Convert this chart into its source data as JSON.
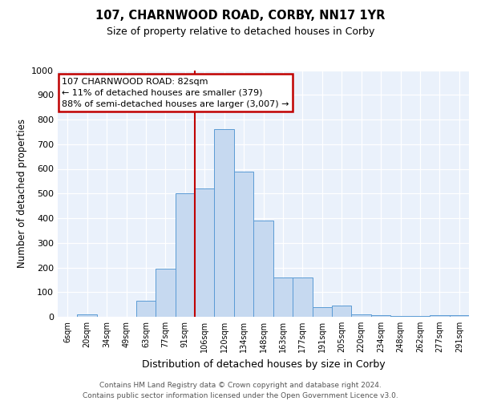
{
  "title1": "107, CHARNWOOD ROAD, CORBY, NN17 1YR",
  "title2": "Size of property relative to detached houses in Corby",
  "xlabel": "Distribution of detached houses by size in Corby",
  "ylabel": "Number of detached properties",
  "categories": [
    "6sqm",
    "20sqm",
    "34sqm",
    "49sqm",
    "63sqm",
    "77sqm",
    "91sqm",
    "106sqm",
    "120sqm",
    "134sqm",
    "148sqm",
    "163sqm",
    "177sqm",
    "191sqm",
    "205sqm",
    "220sqm",
    "234sqm",
    "248sqm",
    "262sqm",
    "277sqm",
    "291sqm"
  ],
  "values": [
    0,
    10,
    0,
    0,
    65,
    195,
    500,
    520,
    760,
    590,
    390,
    160,
    160,
    40,
    45,
    10,
    5,
    2,
    2,
    5,
    5
  ],
  "bar_color": "#c6d9f0",
  "bar_edge_color": "#5b9bd5",
  "vline_x": 6.5,
  "vline_color": "#c00000",
  "annotation_text": "107 CHARNWOOD ROAD: 82sqm\n← 11% of detached houses are smaller (379)\n88% of semi-detached houses are larger (3,007) →",
  "annotation_box_color": "#ffffff",
  "annotation_box_edge_color": "#c00000",
  "ylim": [
    0,
    1000
  ],
  "yticks": [
    0,
    100,
    200,
    300,
    400,
    500,
    600,
    700,
    800,
    900,
    1000
  ],
  "footnote": "Contains HM Land Registry data © Crown copyright and database right 2024.\nContains public sector information licensed under the Open Government Licence v3.0.",
  "plot_bg_color": "#eaf1fb",
  "fig_bg_color": "#ffffff"
}
